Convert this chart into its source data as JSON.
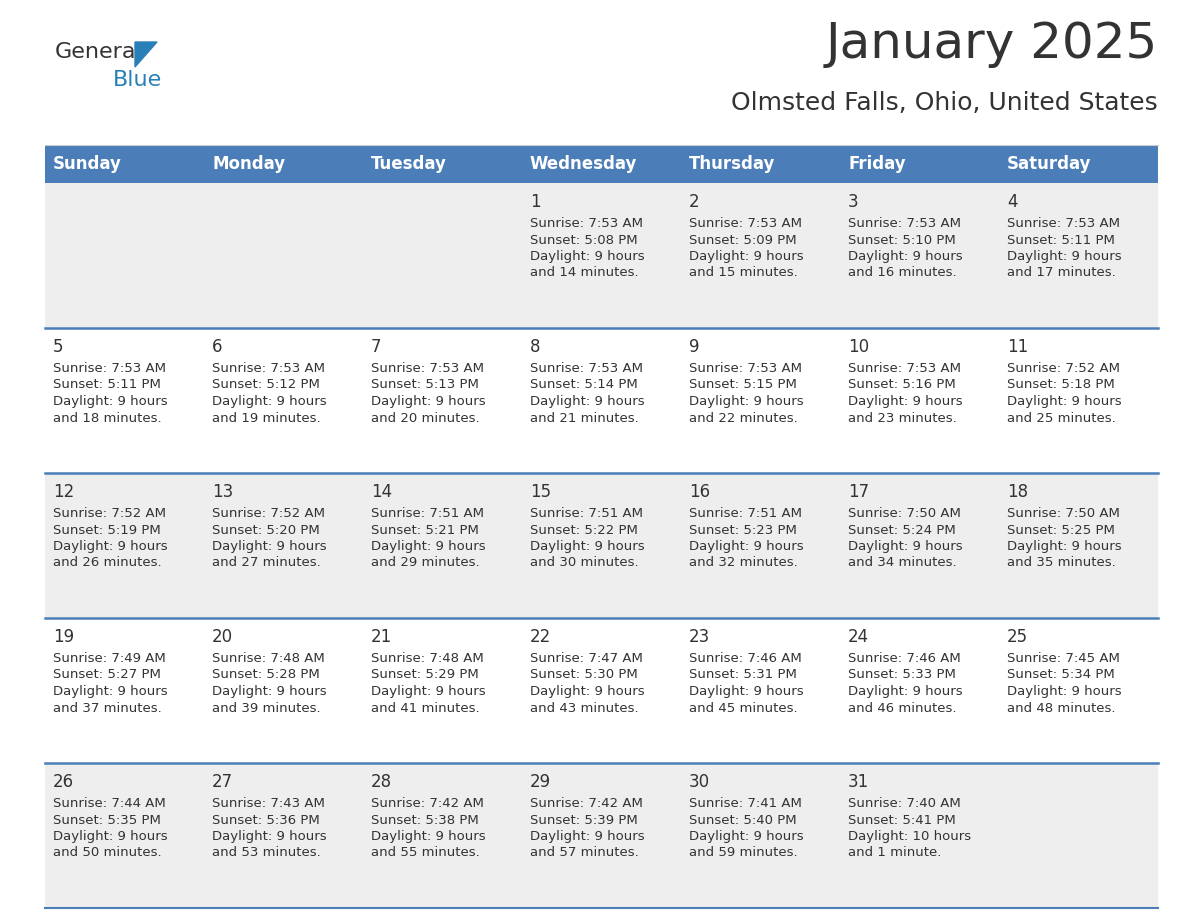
{
  "title": "January 2025",
  "subtitle": "Olmsted Falls, Ohio, United States",
  "header_bg": "#4b7db8",
  "header_text_color": "#FFFFFF",
  "day_names": [
    "Sunday",
    "Monday",
    "Tuesday",
    "Wednesday",
    "Thursday",
    "Friday",
    "Saturday"
  ],
  "weeks": [
    [
      {
        "day": "",
        "sunrise": "",
        "sunset": "",
        "daylight": ""
      },
      {
        "day": "",
        "sunrise": "",
        "sunset": "",
        "daylight": ""
      },
      {
        "day": "",
        "sunrise": "",
        "sunset": "",
        "daylight": ""
      },
      {
        "day": "1",
        "sunrise": "7:53 AM",
        "sunset": "5:08 PM",
        "daylight": "9 hours\nand 14 minutes."
      },
      {
        "day": "2",
        "sunrise": "7:53 AM",
        "sunset": "5:09 PM",
        "daylight": "9 hours\nand 15 minutes."
      },
      {
        "day": "3",
        "sunrise": "7:53 AM",
        "sunset": "5:10 PM",
        "daylight": "9 hours\nand 16 minutes."
      },
      {
        "day": "4",
        "sunrise": "7:53 AM",
        "sunset": "5:11 PM",
        "daylight": "9 hours\nand 17 minutes."
      }
    ],
    [
      {
        "day": "5",
        "sunrise": "7:53 AM",
        "sunset": "5:11 PM",
        "daylight": "9 hours\nand 18 minutes."
      },
      {
        "day": "6",
        "sunrise": "7:53 AM",
        "sunset": "5:12 PM",
        "daylight": "9 hours\nand 19 minutes."
      },
      {
        "day": "7",
        "sunrise": "7:53 AM",
        "sunset": "5:13 PM",
        "daylight": "9 hours\nand 20 minutes."
      },
      {
        "day": "8",
        "sunrise": "7:53 AM",
        "sunset": "5:14 PM",
        "daylight": "9 hours\nand 21 minutes."
      },
      {
        "day": "9",
        "sunrise": "7:53 AM",
        "sunset": "5:15 PM",
        "daylight": "9 hours\nand 22 minutes."
      },
      {
        "day": "10",
        "sunrise": "7:53 AM",
        "sunset": "5:16 PM",
        "daylight": "9 hours\nand 23 minutes."
      },
      {
        "day": "11",
        "sunrise": "7:52 AM",
        "sunset": "5:18 PM",
        "daylight": "9 hours\nand 25 minutes."
      }
    ],
    [
      {
        "day": "12",
        "sunrise": "7:52 AM",
        "sunset": "5:19 PM",
        "daylight": "9 hours\nand 26 minutes."
      },
      {
        "day": "13",
        "sunrise": "7:52 AM",
        "sunset": "5:20 PM",
        "daylight": "9 hours\nand 27 minutes."
      },
      {
        "day": "14",
        "sunrise": "7:51 AM",
        "sunset": "5:21 PM",
        "daylight": "9 hours\nand 29 minutes."
      },
      {
        "day": "15",
        "sunrise": "7:51 AM",
        "sunset": "5:22 PM",
        "daylight": "9 hours\nand 30 minutes."
      },
      {
        "day": "16",
        "sunrise": "7:51 AM",
        "sunset": "5:23 PM",
        "daylight": "9 hours\nand 32 minutes."
      },
      {
        "day": "17",
        "sunrise": "7:50 AM",
        "sunset": "5:24 PM",
        "daylight": "9 hours\nand 34 minutes."
      },
      {
        "day": "18",
        "sunrise": "7:50 AM",
        "sunset": "5:25 PM",
        "daylight": "9 hours\nand 35 minutes."
      }
    ],
    [
      {
        "day": "19",
        "sunrise": "7:49 AM",
        "sunset": "5:27 PM",
        "daylight": "9 hours\nand 37 minutes."
      },
      {
        "day": "20",
        "sunrise": "7:48 AM",
        "sunset": "5:28 PM",
        "daylight": "9 hours\nand 39 minutes."
      },
      {
        "day": "21",
        "sunrise": "7:48 AM",
        "sunset": "5:29 PM",
        "daylight": "9 hours\nand 41 minutes."
      },
      {
        "day": "22",
        "sunrise": "7:47 AM",
        "sunset": "5:30 PM",
        "daylight": "9 hours\nand 43 minutes."
      },
      {
        "day": "23",
        "sunrise": "7:46 AM",
        "sunset": "5:31 PM",
        "daylight": "9 hours\nand 45 minutes."
      },
      {
        "day": "24",
        "sunrise": "7:46 AM",
        "sunset": "5:33 PM",
        "daylight": "9 hours\nand 46 minutes."
      },
      {
        "day": "25",
        "sunrise": "7:45 AM",
        "sunset": "5:34 PM",
        "daylight": "9 hours\nand 48 minutes."
      }
    ],
    [
      {
        "day": "26",
        "sunrise": "7:44 AM",
        "sunset": "5:35 PM",
        "daylight": "9 hours\nand 50 minutes."
      },
      {
        "day": "27",
        "sunrise": "7:43 AM",
        "sunset": "5:36 PM",
        "daylight": "9 hours\nand 53 minutes."
      },
      {
        "day": "28",
        "sunrise": "7:42 AM",
        "sunset": "5:38 PM",
        "daylight": "9 hours\nand 55 minutes."
      },
      {
        "day": "29",
        "sunrise": "7:42 AM",
        "sunset": "5:39 PM",
        "daylight": "9 hours\nand 57 minutes."
      },
      {
        "day": "30",
        "sunrise": "7:41 AM",
        "sunset": "5:40 PM",
        "daylight": "9 hours\nand 59 minutes."
      },
      {
        "day": "31",
        "sunrise": "7:40 AM",
        "sunset": "5:41 PM",
        "daylight": "10 hours\nand 1 minute."
      },
      {
        "day": "",
        "sunrise": "",
        "sunset": "",
        "daylight": ""
      }
    ]
  ],
  "cell_bg_light": "#EEEEEE",
  "cell_bg_white": "#FFFFFF",
  "divider_color": "#4b7db8",
  "text_color": "#333333",
  "title_fontsize": 36,
  "subtitle_fontsize": 18,
  "header_fontsize": 12,
  "daynum_fontsize": 12,
  "cell_fontsize": 9.5
}
